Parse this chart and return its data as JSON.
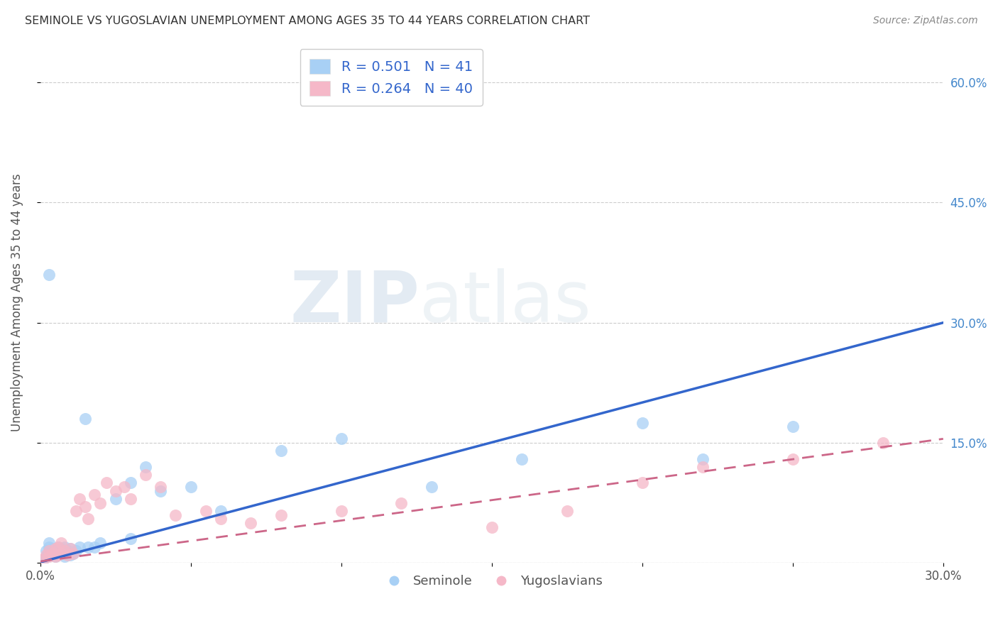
{
  "title": "SEMINOLE VS YUGOSLAVIAN UNEMPLOYMENT AMONG AGES 35 TO 44 YEARS CORRELATION CHART",
  "source": "Source: ZipAtlas.com",
  "ylabel": "Unemployment Among Ages 35 to 44 years",
  "xlim": [
    0.0,
    0.3
  ],
  "ylim": [
    0.0,
    0.65
  ],
  "xtick_positions": [
    0.0,
    0.05,
    0.1,
    0.15,
    0.2,
    0.25,
    0.3
  ],
  "xtick_labels": [
    "0.0%",
    "",
    "",
    "",
    "",
    "",
    "30.0%"
  ],
  "ytick_positions": [
    0.0,
    0.15,
    0.3,
    0.45,
    0.6
  ],
  "ytick_labels": [
    "",
    "15.0%",
    "30.0%",
    "45.0%",
    "60.0%"
  ],
  "seminole_R": "0.501",
  "seminole_N": "41",
  "yugoslav_R": "0.264",
  "yugoslav_N": "40",
  "seminole_color": "#a8d0f5",
  "yugoslav_color": "#f5b8c8",
  "seminole_line_color": "#3366cc",
  "yugoslav_line_color": "#cc6688",
  "background_color": "#ffffff",
  "grid_color": "#cccccc",
  "seminole_line_x0": 0.0,
  "seminole_line_y0": 0.001,
  "seminole_line_x1": 0.3,
  "seminole_line_y1": 0.3,
  "yugoslav_line_x0": 0.0,
  "yugoslav_line_y0": 0.002,
  "yugoslav_line_x1": 0.3,
  "yugoslav_line_y1": 0.155,
  "seminole_x": [
    0.001,
    0.002,
    0.002,
    0.003,
    0.003,
    0.003,
    0.004,
    0.004,
    0.005,
    0.005,
    0.006,
    0.006,
    0.007,
    0.007,
    0.008,
    0.008,
    0.009,
    0.01,
    0.01,
    0.011,
    0.012,
    0.013,
    0.015,
    0.016,
    0.018,
    0.02,
    0.025,
    0.03,
    0.035,
    0.04,
    0.05,
    0.06,
    0.08,
    0.1,
    0.13,
    0.16,
    0.2,
    0.22,
    0.25,
    0.03,
    0.003
  ],
  "seminole_y": [
    0.005,
    0.008,
    0.015,
    0.01,
    0.02,
    0.025,
    0.012,
    0.018,
    0.008,
    0.015,
    0.01,
    0.02,
    0.012,
    0.018,
    0.008,
    0.02,
    0.015,
    0.01,
    0.018,
    0.012,
    0.015,
    0.02,
    0.18,
    0.02,
    0.02,
    0.025,
    0.08,
    0.1,
    0.12,
    0.09,
    0.095,
    0.065,
    0.14,
    0.155,
    0.095,
    0.13,
    0.175,
    0.13,
    0.17,
    0.03,
    0.36
  ],
  "yugoslav_x": [
    0.001,
    0.002,
    0.003,
    0.003,
    0.004,
    0.005,
    0.005,
    0.006,
    0.006,
    0.007,
    0.007,
    0.008,
    0.009,
    0.01,
    0.011,
    0.012,
    0.013,
    0.015,
    0.016,
    0.018,
    0.02,
    0.022,
    0.025,
    0.028,
    0.03,
    0.035,
    0.04,
    0.045,
    0.055,
    0.06,
    0.07,
    0.08,
    0.1,
    0.12,
    0.15,
    0.175,
    0.2,
    0.22,
    0.25,
    0.28
  ],
  "yugoslav_y": [
    0.005,
    0.01,
    0.008,
    0.015,
    0.012,
    0.008,
    0.018,
    0.01,
    0.02,
    0.012,
    0.025,
    0.015,
    0.01,
    0.018,
    0.012,
    0.065,
    0.08,
    0.07,
    0.055,
    0.085,
    0.075,
    0.1,
    0.09,
    0.095,
    0.08,
    0.11,
    0.095,
    0.06,
    0.065,
    0.055,
    0.05,
    0.06,
    0.065,
    0.075,
    0.045,
    0.065,
    0.1,
    0.12,
    0.13,
    0.15
  ]
}
